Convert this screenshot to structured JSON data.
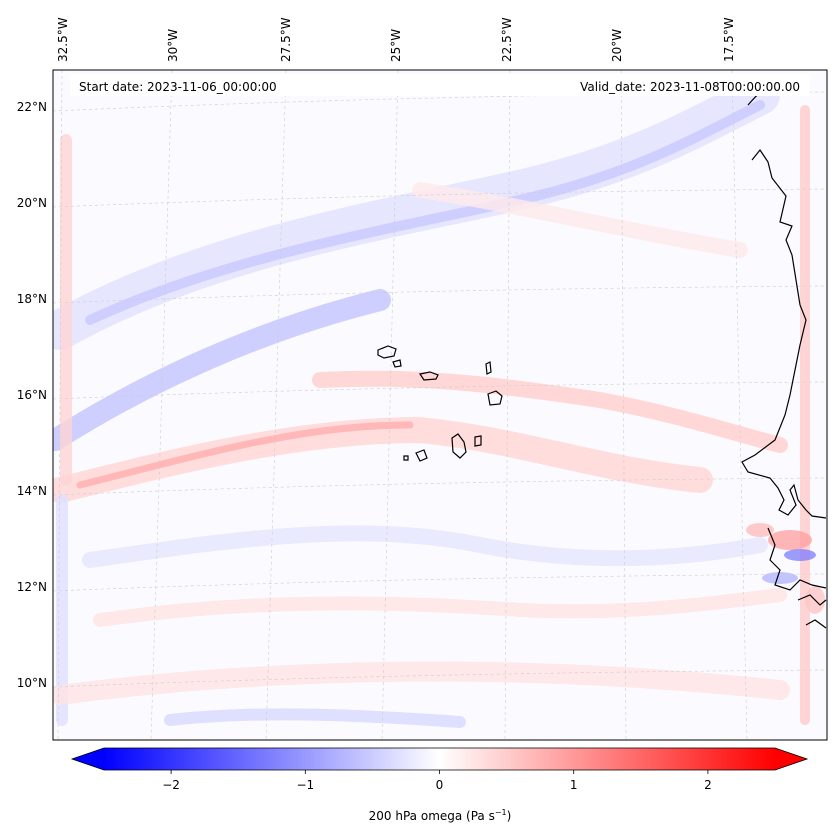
{
  "map": {
    "start_date_text": "Start date: 2023-11-06_00:00:00",
    "valid_date_text": "Valid_date: 2023-11-08T00:00:00.00",
    "lon_labels": [
      "32.5°W",
      "30°W",
      "27.5°W",
      "25°W",
      "22.5°W",
      "20°W",
      "17.5°W"
    ],
    "lat_labels": [
      "22°N",
      "20°N",
      "18°N",
      "16°N",
      "14°N",
      "12°N",
      "10°N"
    ],
    "colors": {
      "negative": "#0000ff",
      "zero": "#ffffff",
      "positive": "#ff0000",
      "coastline": "#000000"
    }
  },
  "colorbar": {
    "ticks": [
      -2,
      -1,
      0,
      1,
      2
    ],
    "tick_labels": [
      "−2",
      "−1",
      "0",
      "1",
      "2"
    ],
    "range": [
      -2.5,
      2.5
    ],
    "extend": "both",
    "label_prefix": "200 hPa omega (Pa s",
    "label_exp": "−1",
    "label_suffix": ")"
  }
}
